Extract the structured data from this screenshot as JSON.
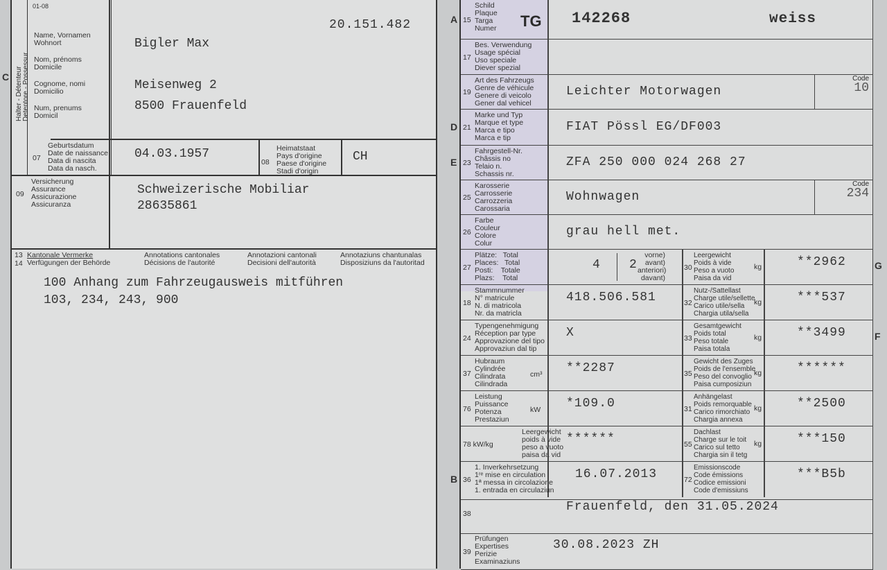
{
  "left": {
    "top_code": "01-08",
    "reg_number": "20.151.482",
    "section_letter": "C",
    "holder_vertical": [
      "Halter - Détenteur",
      "Detentore - Possessur"
    ],
    "holder_labels": [
      "Name, Vornamen",
      "Wohnort",
      "Nom, prénoms",
      "Domicile",
      "Cognome, nomi",
      "Domicilio",
      "Num, prenums",
      "Domicil"
    ],
    "holder_name": "Bigler Max",
    "holder_street": "Meisenweg 2",
    "holder_city": "8500 Frauenfeld",
    "birth": {
      "num": "07",
      "labels": [
        "Geburtsdatum",
        "Date de naissance",
        "Data di nascita",
        "Data da nasch."
      ],
      "value": "04.03.1957"
    },
    "origin": {
      "num": "08",
      "labels": [
        "Heimatstaat",
        "Pays d'origine",
        "Paese d'origine",
        "Stadi d'origin"
      ],
      "value": "CH"
    },
    "insurance": {
      "num": "09",
      "labels": [
        "Versicherung",
        "Assurance",
        "Assicurazione",
        "Assicuranza"
      ],
      "value1": "Schweizerische Mobiliar",
      "value2": "28635861"
    },
    "annotations": {
      "num1": "13",
      "num2": "14",
      "headers": [
        [
          "Kantonale Vermerke",
          "Verfügungen der Behörde"
        ],
        [
          "Annotations cantonales",
          "Décisions de l'autorité"
        ],
        [
          "Annotazioni cantonali",
          "Decisioni dell'autorità"
        ],
        [
          "Annotaziuns chantunalas",
          "Disposiziuns da l'autoritad"
        ]
      ],
      "lines": [
        "100 Anhang zum Fahrzeugausweis mitführen",
        "103, 234, 243, 900"
      ]
    }
  },
  "right": {
    "rows": [
      {
        "letter": "A",
        "num": "15",
        "labels": [
          "Schild",
          "Plaque",
          "Targa",
          "Numer"
        ],
        "canton": "TG",
        "value": "142268",
        "extra": "weiss"
      },
      {
        "num": "17",
        "labels": [
          "Bes. Verwendung",
          "Usage spécial",
          "Uso speciale",
          "Diever spezial"
        ],
        "value": ""
      },
      {
        "num": "19",
        "labels": [
          "Art des Fahrzeugs",
          "Genre de véhicule",
          "Genere di veicolo",
          "Gener dal vehicel"
        ],
        "value": "Leichter Motorwagen",
        "code_label": "Code",
        "code": "10"
      },
      {
        "letter": "D",
        "num": "21",
        "labels": [
          "Marke und Typ",
          "Marque et type",
          "Marca e tipo",
          "Marca e tip"
        ],
        "value": "FIAT Pössl EG/DF003"
      },
      {
        "letter": "E",
        "num": "23",
        "labels": [
          "Fahrgestell-Nr.",
          "Châssis no",
          "Telaio n.",
          "Schassis nr."
        ],
        "value": "ZFA 250 000 024 268 27"
      },
      {
        "num": "25",
        "labels": [
          "Karosserie",
          "Carrosserie",
          "Carrozzeria",
          "Carossaria"
        ],
        "value": "Wohnwagen",
        "code_label": "Code",
        "code": "234"
      },
      {
        "num": "26",
        "labels": [
          "Farbe",
          "Couleur",
          "Colore",
          "Colur"
        ],
        "value": "grau hell met."
      }
    ],
    "pairs": [
      {
        "num": "27",
        "labels": [
          "Plätze:   Total",
          "Places:   Total",
          "Posti:    Totale",
          "Plazs:    Total"
        ],
        "value": "4",
        "front_value": "2",
        "front_labels": [
          "vorne)",
          "avant)",
          "anteriori)",
          "davant)"
        ],
        "num2": "30",
        "labels2": [
          "Leergewicht",
          "Poids à vide",
          "Peso a vuoto",
          "Paisa da vid"
        ],
        "unit2": "kg",
        "value2": "**2962",
        "side": "G"
      },
      {
        "num": "18",
        "labels": [
          "Stammnummer",
          "N° matricule",
          "N. di matricola",
          "Nr. da matricla"
        ],
        "value": "418.506.581",
        "num2": "32",
        "labels2": [
          "Nutz-/Sattellast",
          "Charge utile/sellette",
          "Carico utile/sella",
          "Chargia utila/sella"
        ],
        "unit2": "kg",
        "value2": "***537"
      },
      {
        "num": "24",
        "labels": [
          "Typengenehmigung",
          "Réception par type",
          "Approvazione del tipo",
          "Approvaziun dal tip"
        ],
        "value": "X",
        "num2": "33",
        "labels2": [
          "Gesamtgewicht",
          "Poids total",
          "Peso totale",
          "Paisa totala"
        ],
        "unit2": "kg",
        "value2": "**3499",
        "side": "F"
      },
      {
        "num": "37",
        "labels": [
          "Hubraum",
          "Cylindrée",
          "Cilindrata",
          "Cilindrada"
        ],
        "unit": "cm³",
        "value": "**2287",
        "num2": "35",
        "labels2": [
          "Gewicht des Zuges",
          "Poids de l'ensemble",
          "Peso del convoglio",
          "Paisa cumposiziun"
        ],
        "unit2": "kg",
        "value2": "******"
      },
      {
        "num": "76",
        "labels": [
          "Leistung",
          "Puissance",
          "Potenza",
          "Prestaziun"
        ],
        "unit": "kW",
        "value": "*109.0",
        "num2": "31",
        "labels2": [
          "Anhängelast",
          "Poids remorquable",
          "Carico rimorchiato",
          "Chargia annexa"
        ],
        "unit2": "kg",
        "value2": "**2500"
      },
      {
        "num": "78 kW/kg",
        "labels": [
          "Leergewicht",
          "poids à vide",
          "peso a vuoto",
          "paisa da vid"
        ],
        "value": "******",
        "num2": "55",
        "labels2": [
          "Dachlast",
          "Charge sur le toit",
          "Carico sul tetto",
          "Chargia sin il tetg"
        ],
        "unit2": "kg",
        "value2": "***150"
      },
      {
        "letter": "B",
        "num": "36",
        "labels": [
          "1. Inverkehrsetzung",
          "1ʳᵉ mise en circulation",
          "1ª messa in circolazione",
          "1. entrada en circulaziun"
        ],
        "value": "16.07.2013",
        "num2": "72",
        "labels2": [
          "Emissionscode",
          "Code émissions",
          "Codice emissioni",
          "Code d'emissiuns"
        ],
        "value2": "***B5b"
      }
    ],
    "place_date": {
      "num": "38",
      "value": "Frauenfeld, den 31.05.2024"
    },
    "inspection": {
      "num": "39",
      "labels": [
        "Prüfungen",
        "Expertises",
        "Perizie",
        "Examinaziuns"
      ],
      "value": "30.08.2023 ZH"
    }
  }
}
